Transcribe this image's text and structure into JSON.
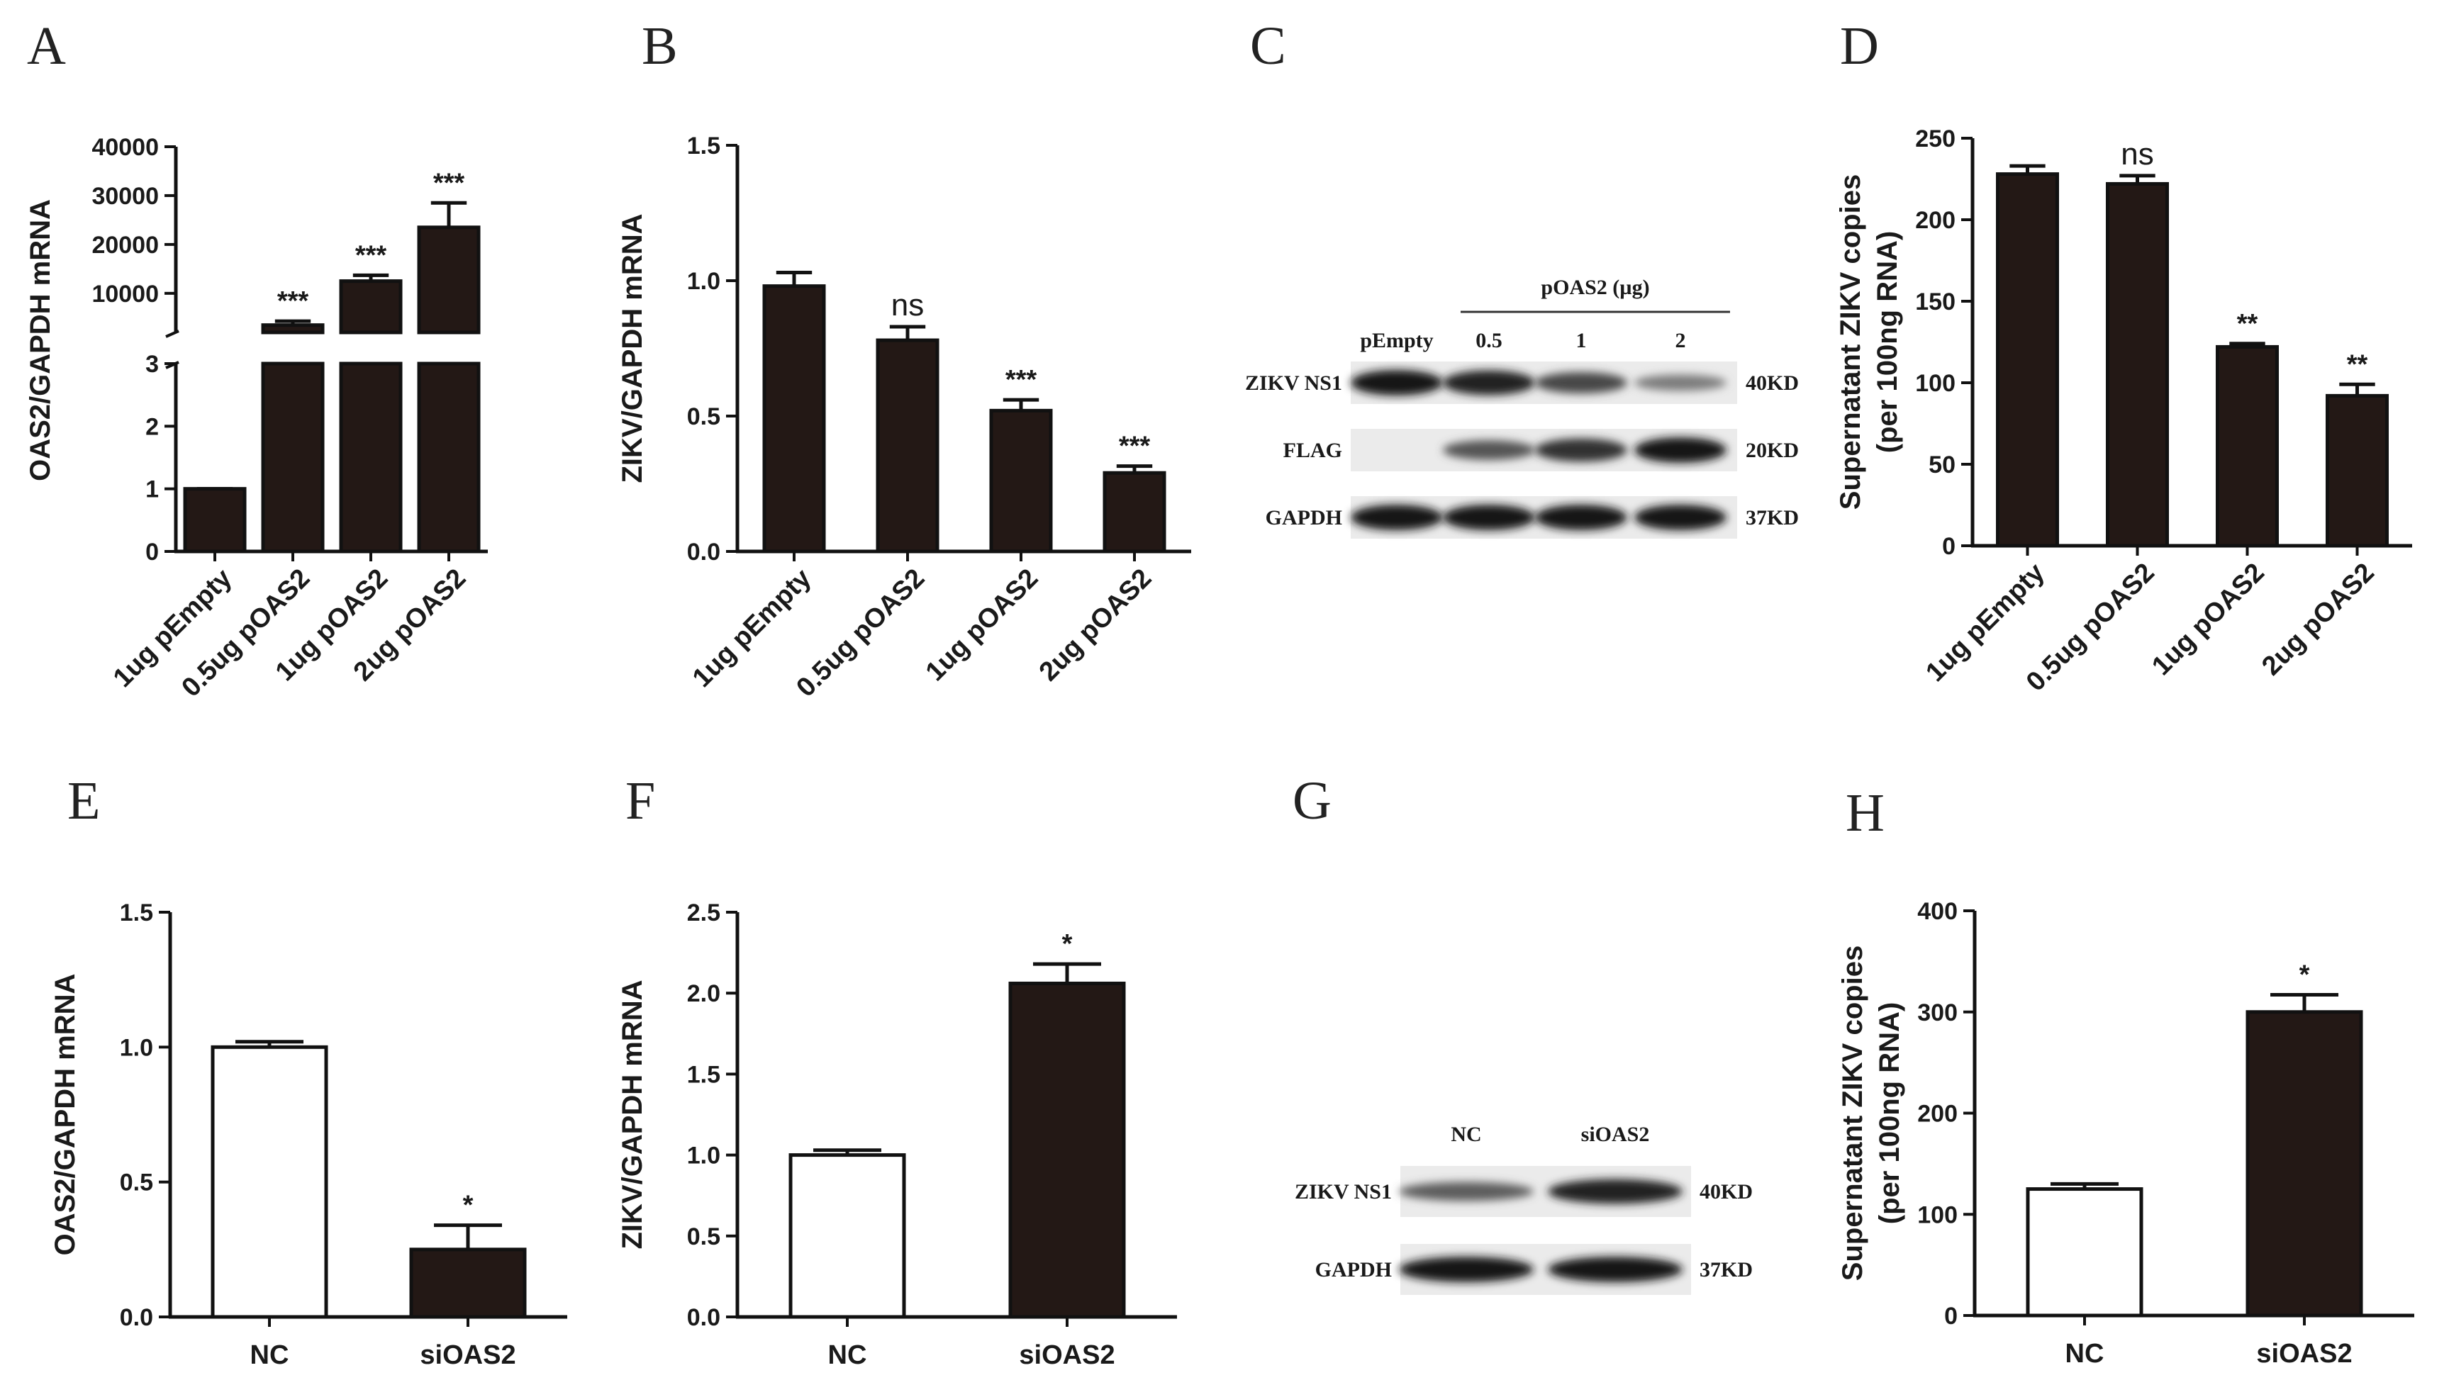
{
  "panels": {
    "A": "A",
    "B": "B",
    "C": "C",
    "D": "D",
    "E": "E",
    "F": "F",
    "G": "G",
    "H": "H"
  },
  "chart_data": [
    {
      "id": "A",
      "type": "bar",
      "categories": [
        "1ug pEmpty",
        "0.5ug pOAS2",
        "1ug pOAS2",
        "2ug pOAS2"
      ],
      "values": [
        1,
        3500,
        12500,
        23500
      ],
      "errors": [
        0,
        800,
        1200,
        5000
      ],
      "significance": [
        "",
        "***",
        "***",
        "***"
      ],
      "ylabel": "OAS2/GAPDH mRNA",
      "axis_break": {
        "lower": [
          0,
          3
        ],
        "upper": [
          0,
          40000
        ]
      },
      "yticks_lower": [
        "0",
        "1",
        "2",
        "3"
      ],
      "yticks_upper": [
        "10000",
        "20000",
        "30000",
        "40000"
      ],
      "bar_color": "#231815"
    },
    {
      "id": "B",
      "type": "bar",
      "categories": [
        "1ug pEmpty",
        "0.5ug pOAS2",
        "1ug pOAS2",
        "2ug pOAS2"
      ],
      "values": [
        0.98,
        0.78,
        0.52,
        0.29
      ],
      "errors": [
        0.05,
        0.05,
        0.04,
        0.025
      ],
      "significance": [
        "",
        "ns",
        "***",
        "***"
      ],
      "ylabel": "ZIKV/GAPDH mRNA",
      "ylim": [
        0,
        1.5
      ],
      "yticks": [
        "0.0",
        "0.5",
        "1.0",
        "1.5"
      ],
      "bar_color": "#231815"
    },
    {
      "id": "D",
      "type": "bar",
      "categories": [
        "1ug pEmpty",
        "0.5ug pOAS2",
        "1ug pOAS2",
        "2ug pOAS2"
      ],
      "values": [
        228,
        222,
        122,
        92
      ],
      "errors": [
        5,
        5,
        2,
        7
      ],
      "significance": [
        "",
        "ns",
        "**",
        "**"
      ],
      "ylabel": "Supernatant ZIKV copies",
      "ylabel2": "(per 100ng RNA)",
      "ylim": [
        0,
        250
      ],
      "yticks": [
        "0",
        "50",
        "100",
        "150",
        "200",
        "250"
      ],
      "bar_color": "#231815"
    },
    {
      "id": "E",
      "type": "bar",
      "categories": [
        "NC",
        "siOAS2"
      ],
      "values": [
        1.0,
        0.25
      ],
      "errors": [
        0.02,
        0.09
      ],
      "significance": [
        "",
        "*"
      ],
      "fills": [
        "#ffffff",
        "#231815"
      ],
      "ylabel": "OAS2/GAPDH mRNA",
      "ylim": [
        0,
        1.5
      ],
      "yticks": [
        "0.0",
        "0.5",
        "1.0",
        "1.5"
      ]
    },
    {
      "id": "F",
      "type": "bar",
      "categories": [
        "NC",
        "siOAS2"
      ],
      "values": [
        1.0,
        2.06
      ],
      "errors": [
        0.03,
        0.12
      ],
      "significance": [
        "",
        "*"
      ],
      "fills": [
        "#ffffff",
        "#231815"
      ],
      "ylabel": "ZIKV/GAPDH mRNA",
      "ylim": [
        0,
        2.5
      ],
      "yticks": [
        "0.0",
        "0.5",
        "1.0",
        "1.5",
        "2.0",
        "2.5"
      ]
    },
    {
      "id": "H",
      "type": "bar",
      "categories": [
        "NC",
        "siOAS2"
      ],
      "values": [
        125,
        300
      ],
      "errors": [
        5,
        17
      ],
      "significance": [
        "",
        "*"
      ],
      "fills": [
        "#ffffff",
        "#231815"
      ],
      "ylabel": "Supernatant ZIKV copies",
      "ylabel2": "(per 100ng RNA)",
      "ylim": [
        0,
        400
      ],
      "yticks": [
        "0",
        "100",
        "200",
        "300",
        "400"
      ]
    }
  ],
  "blots": {
    "C": {
      "group_label": "pOAS2 (µg)",
      "lane_labels": [
        "pEmpty",
        "0.5",
        "1",
        "2"
      ],
      "rows": [
        {
          "name": "ZIKV NS1",
          "size": "40KD",
          "intensity": [
            1.0,
            0.95,
            0.7,
            0.35
          ]
        },
        {
          "name": "FLAG",
          "size": "20KD",
          "intensity": [
            0.0,
            0.6,
            0.85,
            1.0
          ]
        },
        {
          "name": "GAPDH",
          "size": "37KD",
          "intensity": [
            1.0,
            1.0,
            1.0,
            1.0
          ]
        }
      ]
    },
    "G": {
      "lane_labels": [
        "NC",
        "siOAS2"
      ],
      "rows": [
        {
          "name": "ZIKV NS1",
          "size": "40KD",
          "intensity": [
            0.55,
            0.95
          ]
        },
        {
          "name": "GAPDH",
          "size": "37KD",
          "intensity": [
            1.0,
            1.0
          ]
        }
      ]
    }
  }
}
